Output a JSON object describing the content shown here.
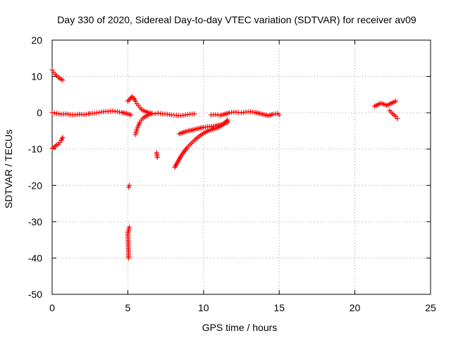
{
  "chart_data": {
    "type": "scatter",
    "title": "Day 330 of 2020, Sidereal Day-to-day VTEC variation (SDTVAR) for receiver av09",
    "xlabel": "GPS time / hours",
    "ylabel": "SDTVAR / TECUs",
    "xlim": [
      0,
      25
    ],
    "ylim": [
      -50,
      20
    ],
    "xticks": [
      "0",
      "5",
      "10",
      "15",
      "20",
      "25"
    ],
    "yticks": [
      "20",
      "10",
      "0",
      "-10",
      "-20",
      "-30",
      "-40",
      "-50"
    ],
    "xtick_values": [
      0,
      5,
      10,
      15,
      20,
      25
    ],
    "ytick_values": [
      20,
      10,
      0,
      -10,
      -20,
      -30,
      -40,
      -50
    ],
    "grid": true,
    "marker": "+",
    "series": [
      {
        "name": "SDTVAR",
        "color": "#ff0000",
        "segments": [
          {
            "name": "arc-early-descending",
            "x": [
              0.0,
              0.1,
              0.2,
              0.3,
              0.4,
              0.5,
              0.6,
              0.7
            ],
            "y": [
              11.8,
              11.2,
              10.6,
              10.2,
              9.8,
              9.5,
              9.2,
              9.0
            ]
          },
          {
            "name": "arc-early-negative",
            "x": [
              0.0,
              0.1,
              0.2,
              0.3,
              0.4,
              0.5,
              0.6,
              0.7
            ],
            "y": [
              -9.8,
              -9.5,
              -9.2,
              -8.9,
              -8.6,
              -8.2,
              -7.6,
              -6.8
            ]
          },
          {
            "name": "arc-near-zero-1",
            "x": [
              0.0,
              0.3,
              0.6,
              0.9,
              1.2,
              1.5,
              1.8,
              2.1,
              2.4
            ],
            "y": [
              0.0,
              -0.2,
              -0.4,
              -0.3,
              -0.5,
              -0.6,
              -0.4,
              -0.5,
              -0.3
            ]
          },
          {
            "name": "arc-near-zero-2",
            "x": [
              2.5,
              2.8,
              3.1,
              3.4,
              3.7,
              4.0,
              4.3,
              4.6,
              4.9,
              5.2
            ],
            "y": [
              -0.2,
              -0.1,
              0.1,
              0.3,
              0.4,
              0.5,
              0.3,
              0.1,
              -0.2,
              -0.6
            ]
          },
          {
            "name": "arc-spike-5h",
            "x": [
              5.0,
              5.3,
              5.4,
              5.5,
              5.6,
              5.7,
              5.8,
              5.9,
              6.0,
              6.2,
              6.4,
              6.6,
              6.8
            ],
            "y": [
              3.2,
              4.5,
              4.0,
              3.2,
              2.5,
              2.0,
              1.4,
              1.0,
              0.6,
              0.3,
              0.0,
              -0.2,
              -0.3
            ]
          },
          {
            "name": "arc-rising-5h",
            "x": [
              5.5,
              5.6,
              5.7,
              5.8,
              5.9,
              6.0,
              6.2,
              6.4,
              6.6
            ],
            "y": [
              -6.0,
              -4.5,
              -3.5,
              -2.6,
              -2.0,
              -1.5,
              -0.9,
              -0.5,
              -0.2
            ]
          },
          {
            "name": "outliers-5h",
            "x": [
              5.05,
              5.1,
              5.05,
              5.1,
              5.0,
              5.05
            ],
            "y": [
              -20.5,
              -20.0,
              -32.5,
              -31.5,
              -33.0,
              -40.0
            ]
          },
          {
            "name": "outliers-7h",
            "x": [
              6.9,
              6.95
            ],
            "y": [
              -11.0,
              -12.3
            ]
          },
          {
            "name": "arc-near-zero-3",
            "x": [
              7.0,
              7.3,
              7.6,
              7.9,
              8.2,
              8.5,
              8.8,
              9.1,
              9.4
            ],
            "y": [
              -0.1,
              -0.3,
              -0.4,
              -0.6,
              -0.7,
              -0.8,
              -0.6,
              -0.4,
              -0.3
            ]
          },
          {
            "name": "arc-recovery-8h",
            "x": [
              8.1,
              8.3,
              8.5,
              8.7,
              8.9,
              9.1,
              9.3,
              9.5,
              9.8,
              10.1,
              10.4,
              10.7,
              11.0,
              11.3,
              11.6
            ],
            "y": [
              -15.0,
              -13.5,
              -12.0,
              -10.8,
              -9.7,
              -8.8,
              -8.0,
              -7.2,
              -6.2,
              -5.4,
              -4.8,
              -4.4,
              -4.0,
              -3.2,
              -2.0
            ]
          },
          {
            "name": "arc-parallel-9h",
            "x": [
              8.4,
              8.8,
              9.2,
              9.6,
              10.0,
              10.4,
              10.8,
              11.2,
              11.6
            ],
            "y": [
              -5.8,
              -5.2,
              -4.8,
              -4.4,
              -4.0,
              -3.8,
              -3.6,
              -3.2,
              -2.6
            ]
          },
          {
            "name": "arc-near-zero-4",
            "x": [
              10.5,
              10.8,
              11.1,
              11.4,
              11.7,
              12.0,
              12.3
            ],
            "y": [
              -0.6,
              -0.5,
              -0.7,
              -0.4,
              0.0,
              0.2,
              0.1
            ]
          },
          {
            "name": "arc-near-zero-5",
            "x": [
              12.5,
              12.8,
              13.1,
              13.4,
              13.7,
              14.0,
              14.3,
              14.6,
              14.9,
              15.0
            ],
            "y": [
              0.0,
              0.2,
              0.3,
              0.1,
              -0.2,
              -0.5,
              -0.8,
              -0.4,
              -0.2,
              -0.6
            ]
          },
          {
            "name": "arc-late-21h",
            "x": [
              21.3,
              21.5,
              21.7,
              21.9,
              22.1,
              22.3,
              22.5,
              22.7
            ],
            "y": [
              1.8,
              2.2,
              2.6,
              2.4,
              2.0,
              2.4,
              2.8,
              3.2
            ]
          },
          {
            "name": "arc-late-22h",
            "x": [
              22.3,
              22.5,
              22.7,
              22.8
            ],
            "y": [
              0.6,
              -0.3,
              -1.0,
              -1.6
            ]
          }
        ]
      }
    ]
  }
}
